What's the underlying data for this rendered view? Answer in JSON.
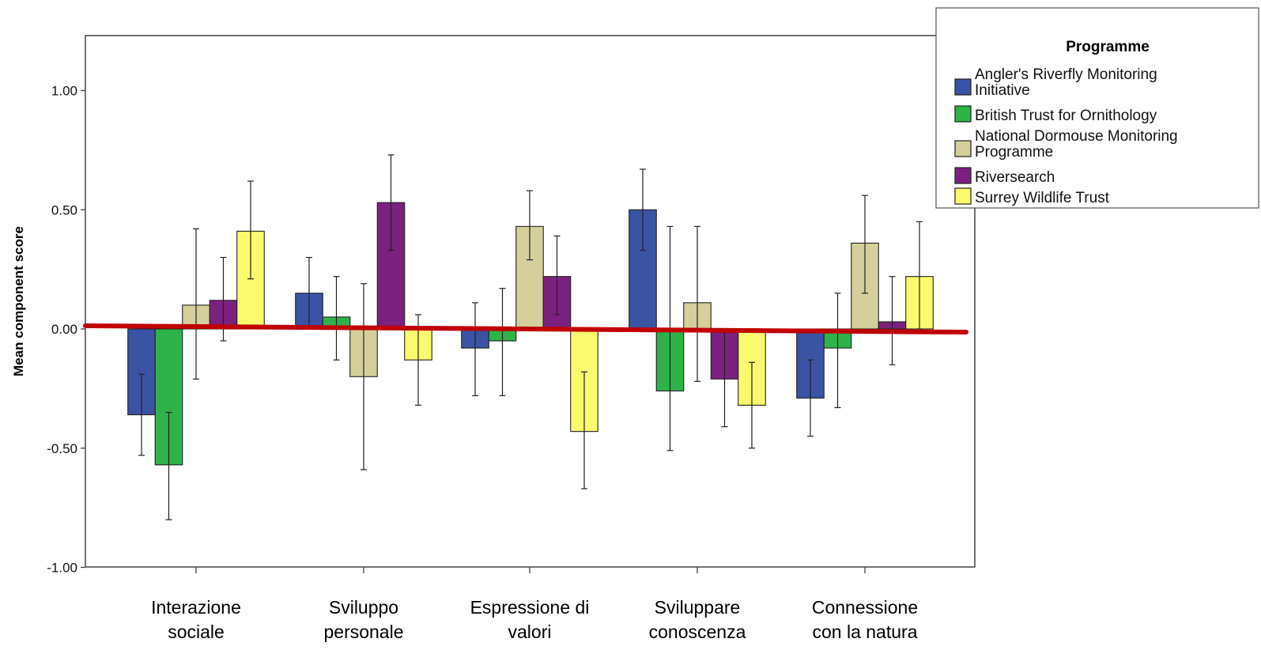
{
  "chart_data": {
    "type": "bar",
    "title": "",
    "xlabel": "",
    "ylabel": "Mean component score",
    "ylim": [
      -1.0,
      1.2
    ],
    "yticks": [
      "1.00",
      "0.50",
      "0.00",
      "-0.50",
      "-1.00"
    ],
    "ytick_values": [
      1.0,
      0.5,
      0.0,
      -0.5,
      -1.0
    ],
    "categories": [
      [
        "Interazione",
        "sociale"
      ],
      [
        "Sviluppo",
        "personale"
      ],
      [
        "Espressione di",
        "valori"
      ],
      [
        "Sviluppare",
        "conoscenza"
      ],
      [
        "Connessione",
        "con la natura"
      ]
    ],
    "series": [
      {
        "name": "Angler's Riverfly Monitoring Initiative",
        "color": "#3a53a4",
        "values": [
          -0.36,
          0.15,
          -0.08,
          0.5,
          -0.29
        ],
        "err_low": [
          -0.53,
          0.0,
          -0.28,
          0.33,
          -0.45
        ],
        "err_high": [
          -0.19,
          0.3,
          0.11,
          0.67,
          -0.13
        ]
      },
      {
        "name": "British Trust for Ornithology",
        "color": "#2eb34a",
        "values": [
          -0.57,
          0.05,
          -0.05,
          -0.26,
          -0.08
        ],
        "err_low": [
          -0.8,
          -0.13,
          -0.28,
          -0.51,
          -0.33
        ],
        "err_high": [
          -0.35,
          0.22,
          0.17,
          0.43,
          0.15
        ]
      },
      {
        "name": "National Dormouse Monitoring Programme",
        "color": "#d4cf9b",
        "values": [
          0.1,
          -0.2,
          0.43,
          0.11,
          0.36
        ],
        "err_low": [
          -0.21,
          -0.59,
          0.29,
          -0.22,
          0.15
        ],
        "err_high": [
          0.42,
          0.19,
          0.58,
          0.43,
          0.56
        ]
      },
      {
        "name": "Riversearch",
        "color": "#7b2180",
        "values": [
          0.12,
          0.53,
          0.22,
          -0.21,
          0.03
        ],
        "err_low": [
          -0.05,
          0.33,
          0.06,
          -0.41,
          -0.15
        ],
        "err_high": [
          0.3,
          0.73,
          0.39,
          0.0,
          0.22
        ]
      },
      {
        "name": "Surrey Wildlife Trust",
        "color": "#fafa6e",
        "values": [
          0.41,
          -0.13,
          -0.43,
          -0.32,
          0.22
        ],
        "err_low": [
          0.21,
          -0.32,
          -0.67,
          -0.5,
          0.0
        ],
        "err_high": [
          0.62,
          0.06,
          -0.18,
          -0.14,
          0.45
        ]
      }
    ],
    "reference_line": {
      "color": "#c00000",
      "y_start": 0.01,
      "y_end": -0.01
    },
    "legend": {
      "title": "Programme",
      "position": "top-right"
    }
  }
}
